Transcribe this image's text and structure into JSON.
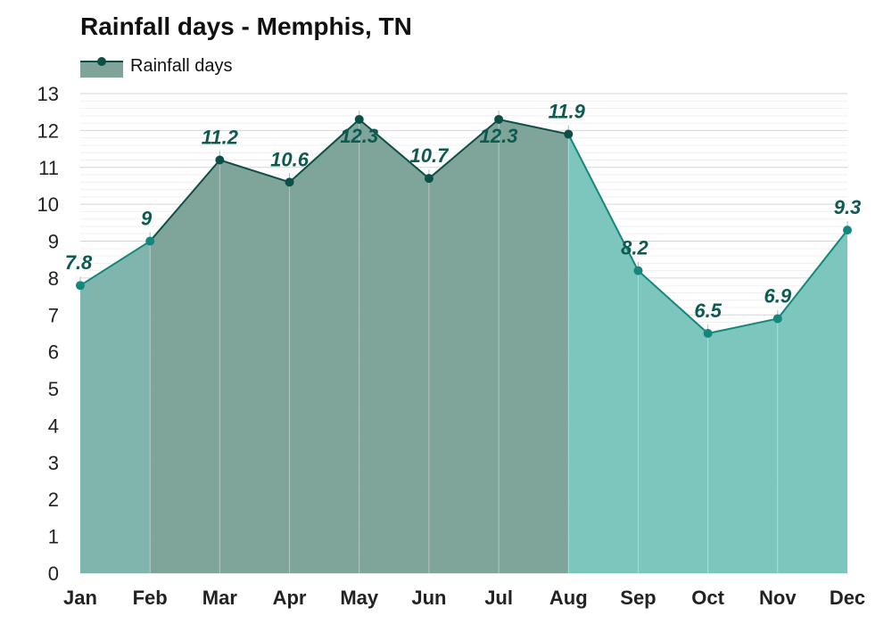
{
  "chart_data": {
    "type": "area",
    "title": "Rainfall days - Memphis, TN",
    "xlabel": "",
    "ylabel": "",
    "categories": [
      "Jan",
      "Feb",
      "Mar",
      "Apr",
      "May",
      "Jun",
      "Jul",
      "Aug",
      "Sep",
      "Oct",
      "Nov",
      "Dec"
    ],
    "series": [
      {
        "name": "Rainfall days",
        "values": [
          7.8,
          9,
          11.2,
          10.6,
          12.3,
          10.7,
          12.3,
          11.9,
          8.2,
          6.5,
          6.9,
          9.3
        ]
      }
    ],
    "data_labels": [
      "7.8",
      "9",
      "11.2",
      "10.6",
      "12.3",
      "10.7",
      "12.3",
      "11.9",
      "8.2",
      "6.5",
      "6.9",
      "9.3"
    ],
    "y_ticks": [
      "0",
      "1",
      "2",
      "3",
      "4",
      "5",
      "6",
      "7",
      "8",
      "9",
      "10",
      "11",
      "12",
      "13"
    ],
    "ylim": [
      0,
      13
    ],
    "grid": true,
    "legend_position": "top-left",
    "colors": {
      "line_dark": "#0d4f47",
      "line_light": "#13877b",
      "fill_dark": "#7fa59b",
      "fill_light": "#7cc6bd",
      "label": "#0d5a50",
      "grid": "#dddddd"
    },
    "dark_segments_from_month_index": [
      1,
      2,
      3,
      4,
      5,
      6
    ]
  }
}
